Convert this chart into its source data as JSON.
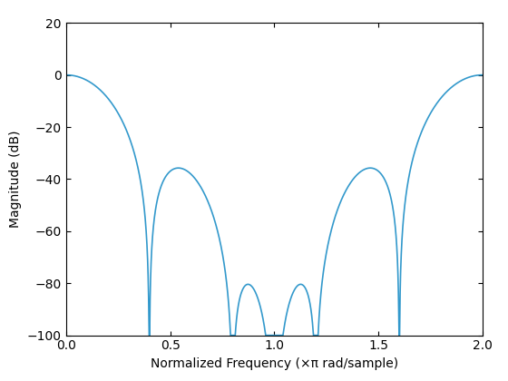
{
  "title": "",
  "xlabel": "Normalized Frequency (×π rad/sample)",
  "ylabel": "Magnitude (dB)",
  "xlim": [
    0,
    2
  ],
  "ylim": [
    -100,
    20
  ],
  "xticks": [
    0,
    0.5,
    1.0,
    1.5,
    2.0
  ],
  "yticks": [
    -100,
    -80,
    -60,
    -40,
    -20,
    0,
    20
  ],
  "line_color": "#3399cc",
  "line_width": 1.2,
  "bg_color": "#ffffff",
  "tick_fontsize": 10,
  "label_fontsize": 10
}
